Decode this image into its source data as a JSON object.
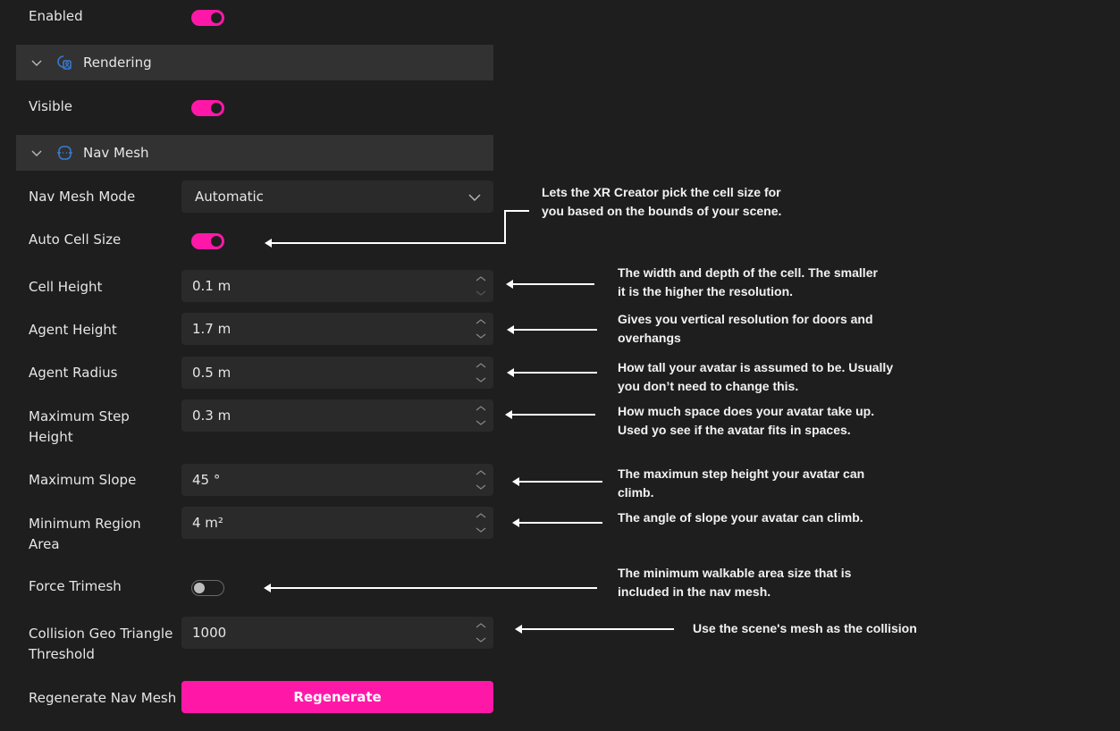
{
  "colors": {
    "accent": "#ff18a8",
    "background": "#1e1e1e",
    "section": "#323232",
    "icon": "#3a7bd5"
  },
  "enabled": {
    "label": "Enabled",
    "value": true
  },
  "rendering": {
    "title": "Rendering",
    "icon": "rendering-icon",
    "visible_label": "Visible",
    "visible": true
  },
  "navmesh": {
    "title": "Nav Mesh",
    "icon": "navmesh-icon",
    "mode": {
      "label": "Nav Mesh Mode",
      "value": "Automatic"
    },
    "auto_cell_size": {
      "label": "Auto Cell Size",
      "value": true
    },
    "cell_height": {
      "label": "Cell Height",
      "value": "0.1 m"
    },
    "agent_height": {
      "label": "Agent Height",
      "value": "1.7 m"
    },
    "agent_radius": {
      "label": "Agent Radius",
      "value": "0.5 m"
    },
    "max_step_height": {
      "label": "Maximum Step Height",
      "value": "0.3 m"
    },
    "max_slope": {
      "label": "Maximum Slope",
      "value": "45 °"
    },
    "min_region_area": {
      "label": "Minimum Region Area",
      "value": "4 m²"
    },
    "force_trimesh": {
      "label": "Force Trimesh",
      "value": false
    },
    "collision_threshold": {
      "label": "Collision Geo Triangle Threshold",
      "value": "1000"
    },
    "regenerate": {
      "label": "Regenerate Nav Mesh",
      "button": "Regenerate"
    }
  },
  "annotations": {
    "auto_cell_size": [
      "Lets the XR Creator pick the cell size for",
      "you based on the bounds of your scene."
    ],
    "cell_height": [
      "The width and depth of the cell. The smaller",
      "it is the higher the resolution."
    ],
    "agent_height": [
      "Gives you vertical resolution for doors and",
      "overhangs"
    ],
    "agent_radius": [
      "How tall your avatar is assumed to be. Usually",
      "you don’t need to change this."
    ],
    "max_step_height": [
      "How much space does your avatar take up.",
      "Used yo see if the avatar fits in spaces."
    ],
    "max_slope": [
      "The maximun step height your avatar can",
      "climb."
    ],
    "min_region_area": [
      "The angle of slope your avatar can climb."
    ],
    "force_trimesh": [
      "The minimum walkable area size that is",
      "included in the nav mesh."
    ],
    "collision_threshold": [
      "Use the scene's mesh as the collision"
    ]
  }
}
